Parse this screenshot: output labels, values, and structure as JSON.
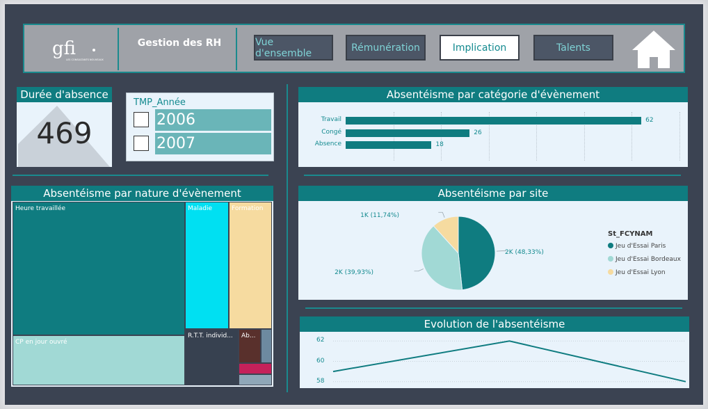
{
  "header": {
    "logo_text": "gfi",
    "logo_subtext": "LES CONSULTANTS NOUVEAUX",
    "title": "Gestion des RH",
    "nav": [
      {
        "label": "Vue d'ensemble",
        "active": false
      },
      {
        "label": "Rémunération",
        "active": false
      },
      {
        "label": "Implication",
        "active": true
      },
      {
        "label": "Talents",
        "active": false
      }
    ],
    "home_icon": "home-icon"
  },
  "kpi": {
    "title": "Durée d'absence",
    "value": "469"
  },
  "slicer": {
    "title": "TMP_Année",
    "options": [
      {
        "label": "2006",
        "checked": false
      },
      {
        "label": "2007",
        "checked": false
      }
    ]
  },
  "bar_chart": {
    "title": "Absentéisme par catégorie d'évènement",
    "chart_data": {
      "type": "bar",
      "orientation": "horizontal",
      "categories": [
        "Travail",
        "Congé",
        "Absence"
      ],
      "values": [
        62,
        26,
        18
      ],
      "data_labels": [
        "62",
        "26",
        "18"
      ],
      "xlim": [
        0,
        70
      ],
      "grid": true,
      "color": "#0f7c80"
    }
  },
  "treemap": {
    "title": "Absentéisme par nature d'évènement",
    "chart_data": {
      "type": "treemap",
      "cells": [
        {
          "label": "Heure travaillée",
          "color": "#0f7c80"
        },
        {
          "label": "CP en jour ouvré",
          "color": "#a1d9d5"
        },
        {
          "label": "Maladie",
          "color": "#00e0f2"
        },
        {
          "label": "Formation",
          "color": "#f6dba0"
        },
        {
          "label": "R.T.T. individ...",
          "color": "#374150"
        },
        {
          "label": "Ab...",
          "color": "#59302c"
        },
        {
          "label": "",
          "color": "#6d8aa0"
        },
        {
          "label": "",
          "color": "#c5215a"
        },
        {
          "label": "",
          "color": "#8fa7b8"
        }
      ]
    }
  },
  "pie_chart": {
    "title": "Absentéisme par site",
    "legend_title": "St_FCYNAM",
    "chart_data": {
      "type": "pie",
      "slices": [
        {
          "name": "Jeu d'Essai Paris",
          "value": 48.33,
          "label": "2K (48,33%)",
          "color": "#0f7c80"
        },
        {
          "name": "Jeu d'Essai Bordeaux",
          "value": 39.93,
          "label": "2K (39,93%)",
          "color": "#a1d9d5"
        },
        {
          "name": "Jeu d'Essai Lyon",
          "value": 11.74,
          "label": "1K (11,74%)",
          "color": "#f6dba0"
        }
      ],
      "legend_position": "right"
    }
  },
  "line_chart": {
    "title": "Evolution de l'absentéisme",
    "chart_data": {
      "type": "line",
      "x": [
        1,
        2,
        3
      ],
      "values": [
        59,
        62,
        58
      ],
      "ylim": [
        57.5,
        62.5
      ],
      "yticks": [
        "62",
        "60",
        "58"
      ],
      "grid": true,
      "color": "#0f7c80"
    }
  }
}
